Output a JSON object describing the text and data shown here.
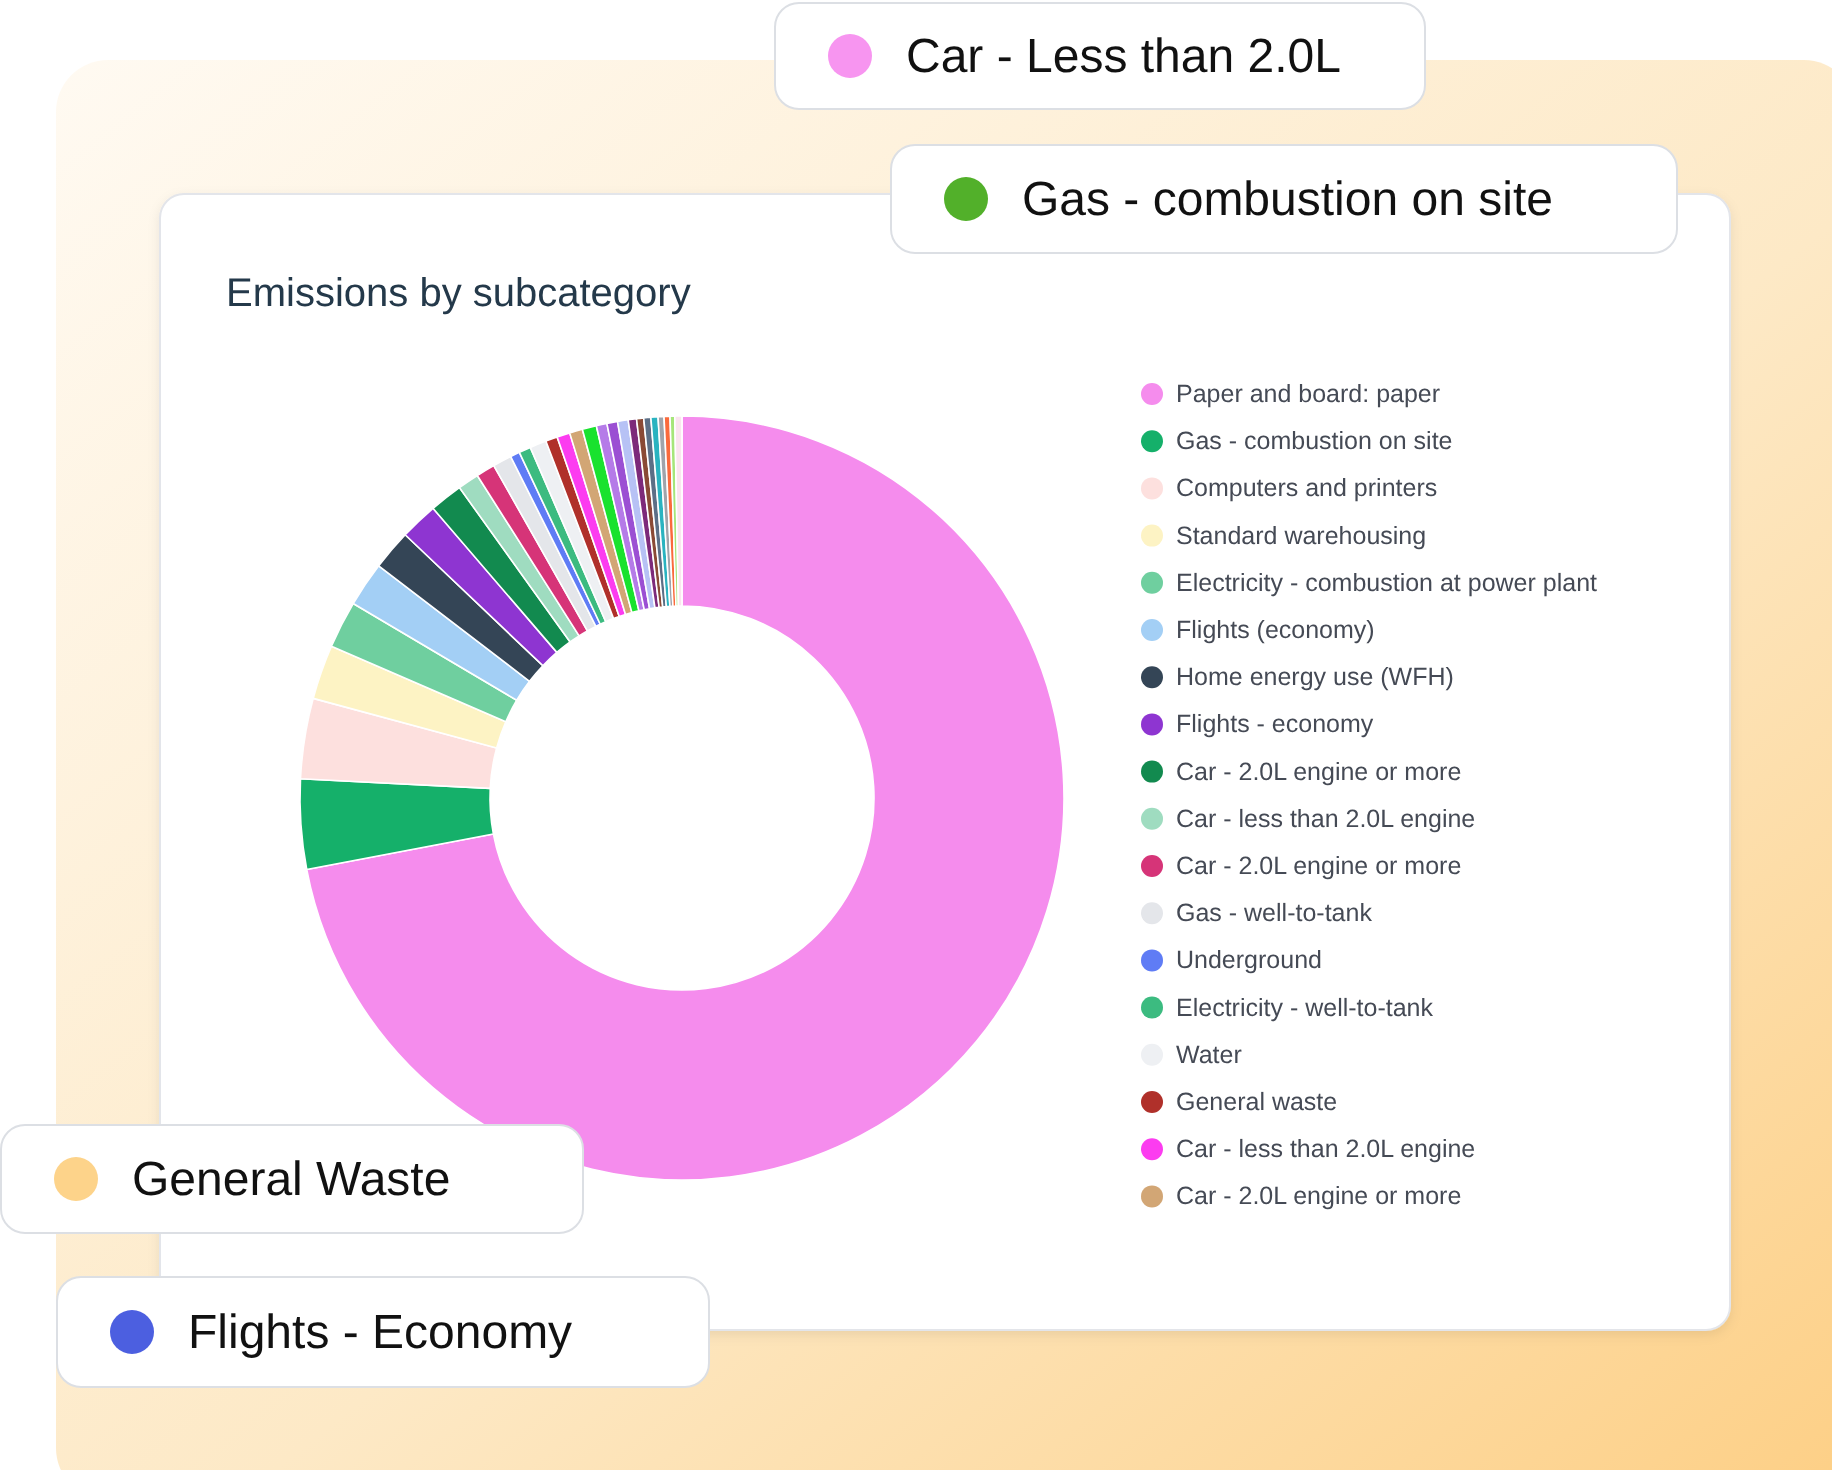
{
  "chart_data": {
    "type": "donut",
    "title": "Emissions by subcategory",
    "categories": [
      "Paper and board: paper",
      "Gas - combustion on site",
      "Computers and printers",
      "Standard warehousing",
      "Electricity - combustion at power plant",
      "Flights (economy)",
      "Home energy use (WFH)",
      "Flights - economy",
      "Car - 2.0L engine or more",
      "Car - less than 2.0L engine",
      "Car - 2.0L engine or more",
      "Gas - well-to-tank",
      "Underground",
      "Electricity - well-to-tank",
      "Water",
      "General waste",
      "Car - less than 2.0L engine",
      "Car - 2.0L engine or more",
      null,
      null,
      null,
      null,
      null,
      null,
      null,
      null,
      null,
      null,
      null,
      null
    ],
    "values": [
      72.0,
      3.8,
      3.4,
      2.3,
      2.0,
      1.9,
      1.7,
      1.6,
      1.4,
      0.9,
      0.8,
      0.8,
      0.4,
      0.5,
      0.7,
      0.5,
      0.55,
      0.55,
      0.6,
      0.45,
      0.45,
      0.45,
      0.35,
      0.3,
      0.3,
      0.3,
      0.25,
      0.25,
      0.2,
      0.3
    ],
    "colors": [
      "#f58ced",
      "#15b06a",
      "#fde0de",
      "#fdf3c4",
      "#6fcf9f",
      "#a3cff5",
      "#344556",
      "#8e35d1",
      "#128a4f",
      "#9fdcc0",
      "#d63478",
      "#e4e6ea",
      "#5f7cf5",
      "#3cbb80",
      "#eef0f3",
      "#b0302a",
      "#fc3cf0",
      "#d2a675",
      "#19e22e",
      "#b57be8",
      "#9b4fd3",
      "#b7c2f5",
      "#7d2a7a",
      "#8a4a35",
      "#5c6f86",
      "#2ab3c0",
      "#a0a4ab",
      "#fa6a3c",
      "#a6e67a",
      "#fbe4ef"
    ],
    "legend": "right",
    "annotations": [
      "Car - Less than 2.0L",
      "Gas - combustion on site",
      "General Waste",
      "Flights - Economy"
    ]
  }
}
